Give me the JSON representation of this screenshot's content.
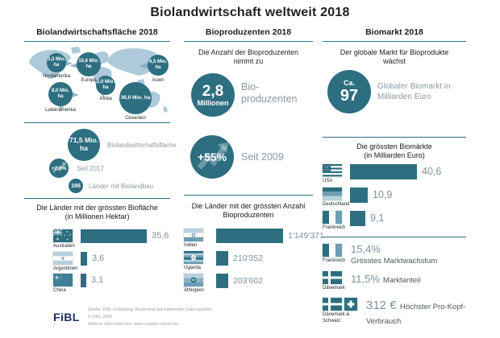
{
  "title": "Biolandwirtschaft weltweit 2018",
  "colors": {
    "dark_teal": "#2d6e80",
    "header_underline": "#2b7d95",
    "map_land": "#adc9da",
    "mid_blue": "#6f9db3",
    "light_blue": "#b9d0dd",
    "gray_label": "#8b99a3",
    "value_gray": "#7e919e",
    "fibl_navy": "#1b2f5e"
  },
  "columns": {
    "area": {
      "header": "Biolandwirtschaftsfläche 2018",
      "bubbles": [
        {
          "value": "3,3 Mio. ha",
          "region": "Nordamerika"
        },
        {
          "value": "15,6 Mio. ha",
          "region": "Europa"
        },
        {
          "value": "6,5 Mio. ha",
          "region": "Asien"
        },
        {
          "value": "8,0 Mio. ha",
          "region": "Lateinamerika"
        },
        {
          "value": "2,0 Mio. ha",
          "region": "Afrika"
        },
        {
          "value": "36,0 Mio. ha",
          "region": "Ozeanien"
        }
      ],
      "stats": {
        "area": {
          "value": "71,5 Mio. ha",
          "label": "Biolandwirtschaftsfläche"
        },
        "growth": {
          "value": "+2,9%",
          "label": "Seit 2017"
        },
        "countries": {
          "value": "186",
          "label": "Länder mit Biolandbau"
        }
      },
      "chart_title_line1": "Die Länder mit der grössten Biofläche",
      "chart_title_line2": "(in Millionen Hektar)",
      "rows": [
        {
          "country": "Australien",
          "value_label": "35,6"
        },
        {
          "country": "Argentinien",
          "value_label": "3,6"
        },
        {
          "country": "China",
          "value_label": "3,1"
        }
      ]
    },
    "producers": {
      "header": "Bioproduzenten 2018",
      "intro_line1": "Die Anzahl der Bioproduzenten",
      "intro_line2": "nimmt zu",
      "big_stat": {
        "value_main": "2,8",
        "value_sub": "Millionen",
        "label": "Bio-\nproduzenten"
      },
      "growth_stat": {
        "value": "+55%",
        "label": "Seit 2009"
      },
      "chart_title_line1": "Die Länder mit der grössten Anzahl",
      "chart_title_line2": "Bioproduzenten",
      "rows": [
        {
          "country": "Indien",
          "value_label": "1'149'371"
        },
        {
          "country": "Uganda",
          "value_label": "210'352"
        },
        {
          "country": "Äthiopien",
          "value_label": "203'602"
        }
      ]
    },
    "market": {
      "header": "Biomarkt 2018",
      "intro_line1": "Der globale Markt für Bioprodukte",
      "intro_line2": "wächst",
      "big_stat": {
        "value_prefix": "Ca.",
        "value_main": "97",
        "label": "Globaler Biomarkt in Milliarden Euro"
      },
      "chart_title_line1": "Die grössten Biomärkte",
      "chart_title_line2": "(in Milliarden Euro)",
      "rows": [
        {
          "country": "USA",
          "value_label": "40,6"
        },
        {
          "country": "Deutschland",
          "value_label": "10,9"
        },
        {
          "country": "Frankreich",
          "value_label": "9,1"
        }
      ],
      "facts": [
        {
          "country": "Frankreich",
          "value": "15,4%",
          "label": "Grösstes Marktwachstum"
        },
        {
          "country": "Dänemark",
          "value": "11,5%",
          "label": "Marktanteil"
        },
        {
          "country": "Dänemark & Schweiz",
          "value": "312 €",
          "label": "Höchster Pro-Kopf-Verbrauch"
        }
      ]
    }
  },
  "footer": {
    "logo": "FiBL",
    "source_line1": "Quelle: FiBL-Erhebung. Basierend auf nationalen Datenquellen",
    "source_line2": "© FiBL 2020",
    "source_line3": "Weitere Informationen: www.organic-world.net"
  },
  "chart_data": [
    {
      "type": "bar",
      "title": "Biolandwirtschaftsfläche 2018 nach Region",
      "categories": [
        "Nordamerika",
        "Europa",
        "Asien",
        "Lateinamerika",
        "Afrika",
        "Ozeanien"
      ],
      "values": [
        3.3,
        15.6,
        6.5,
        8.0,
        2.0,
        36.0
      ],
      "unit": "Mio. ha",
      "orientation": "bubble-map"
    },
    {
      "type": "bar",
      "title": "Die Länder mit der grössten Biofläche (in Millionen Hektar)",
      "categories": [
        "Australien",
        "Argentinien",
        "China"
      ],
      "values": [
        35.6,
        3.6,
        3.1
      ],
      "unit": "Mio. ha",
      "orientation": "horizontal"
    },
    {
      "type": "bar",
      "title": "Die Länder mit der grössten Anzahl Bioproduzenten",
      "categories": [
        "Indien",
        "Uganda",
        "Äthiopien"
      ],
      "values": [
        1149371,
        210352,
        203602
      ],
      "unit": "Produzenten",
      "orientation": "horizontal"
    },
    {
      "type": "bar",
      "title": "Die grössten Biomärkte (in Milliarden Euro)",
      "categories": [
        "USA",
        "Deutschland",
        "Frankreich"
      ],
      "values": [
        40.6,
        10.9,
        9.1
      ],
      "unit": "Mrd. Euro",
      "orientation": "horizontal"
    }
  ]
}
